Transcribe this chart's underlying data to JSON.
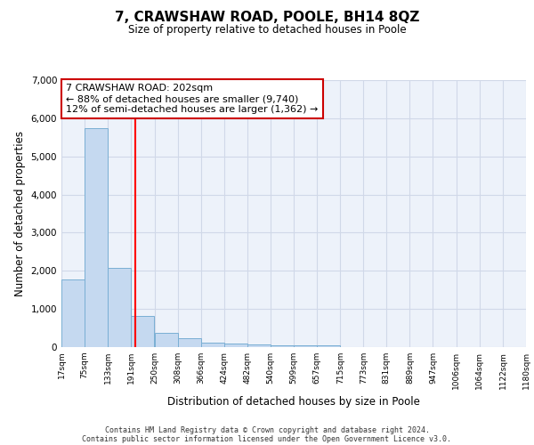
{
  "title": "7, CRAWSHAW ROAD, POOLE, BH14 8QZ",
  "subtitle": "Size of property relative to detached houses in Poole",
  "xlabel": "Distribution of detached houses by size in Poole",
  "ylabel": "Number of detached properties",
  "bar_left_edges": [
    17,
    75,
    133,
    191,
    250,
    308,
    366,
    424,
    482,
    540,
    599,
    657,
    715,
    773,
    831,
    889,
    947,
    1006,
    1064,
    1122
  ],
  "bar_heights": [
    1780,
    5750,
    2080,
    820,
    370,
    235,
    115,
    100,
    75,
    55,
    50,
    45,
    0,
    0,
    0,
    0,
    0,
    0,
    0,
    0
  ],
  "bin_width": 58,
  "bar_color": "#c5d9f0",
  "bar_edge_color": "#7aafd4",
  "grid_color": "#d0d8e8",
  "background_color": "#edf2fa",
  "red_line_x": 202,
  "annotation_text": "7 CRAWSHAW ROAD: 202sqm\n← 88% of detached houses are smaller (9,740)\n12% of semi-detached houses are larger (1,362) →",
  "annotation_box_color": "#ffffff",
  "annotation_box_edge": "#cc0000",
  "ylim": [
    0,
    7000
  ],
  "yticks": [
    0,
    1000,
    2000,
    3000,
    4000,
    5000,
    6000,
    7000
  ],
  "tick_labels": [
    "17sqm",
    "75sqm",
    "133sqm",
    "191sqm",
    "250sqm",
    "308sqm",
    "366sqm",
    "424sqm",
    "482sqm",
    "540sqm",
    "599sqm",
    "657sqm",
    "715sqm",
    "773sqm",
    "831sqm",
    "889sqm",
    "947sqm",
    "1006sqm",
    "1064sqm",
    "1122sqm",
    "1180sqm"
  ],
  "footer_line1": "Contains HM Land Registry data © Crown copyright and database right 2024.",
  "footer_line2": "Contains public sector information licensed under the Open Government Licence v3.0."
}
